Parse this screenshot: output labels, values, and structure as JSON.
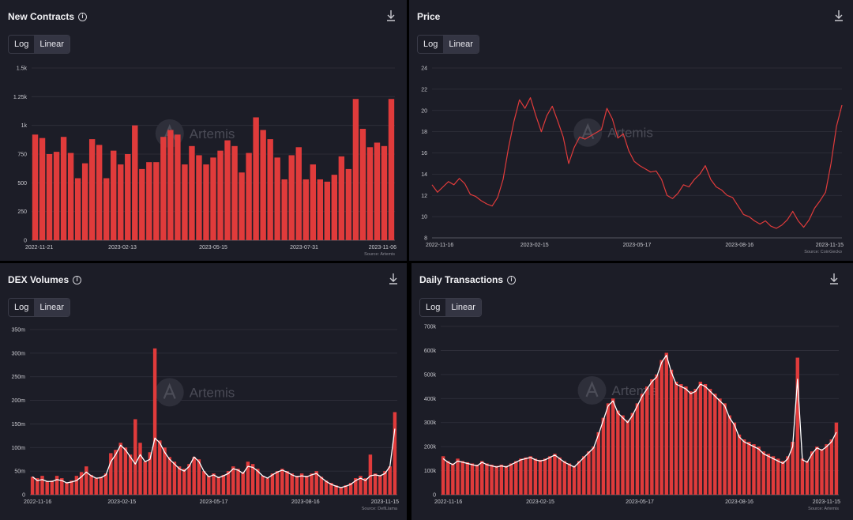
{
  "theme": {
    "panel_bg": "#1c1d27",
    "bar_color": "#e03b3b",
    "line_color": "#e03b3b",
    "avg_line_color": "#ffffff",
    "grid_color": "#30313c"
  },
  "toggle": {
    "log": "Log",
    "linear": "Linear",
    "selected": "Linear"
  },
  "watermark": "Artemis",
  "panels": {
    "contracts": {
      "title": "New Contracts",
      "source": "Source: Artemis"
    },
    "price": {
      "title": "Price",
      "source": "Source: CoinGecko"
    },
    "dex": {
      "title": "DEX Volumes",
      "source": "Source: DefiLlama"
    },
    "tx": {
      "title": "Daily Transactions",
      "source": "Source: Artemis"
    }
  },
  "chart_data": [
    {
      "id": "contracts",
      "type": "bar",
      "title": "New Contracts",
      "ylim": [
        0,
        1500
      ],
      "yticks": [
        "0",
        "250",
        "500",
        "750",
        "1k",
        "1.25k",
        "1.5k"
      ],
      "xticks": [
        "2022-11-21",
        "2023-02-13",
        "2023-05-15",
        "2023-07-31",
        "2023-11-06"
      ],
      "grid": true,
      "values": [
        920,
        890,
        750,
        770,
        900,
        760,
        540,
        670,
        880,
        830,
        540,
        780,
        660,
        750,
        1000,
        620,
        680,
        680,
        900,
        960,
        920,
        660,
        820,
        740,
        660,
        720,
        780,
        870,
        820,
        590,
        760,
        1070,
        960,
        880,
        720,
        530,
        740,
        810,
        530,
        660,
        530,
        510,
        570,
        730,
        620,
        1230,
        970,
        810,
        850,
        820,
        1230
      ]
    },
    {
      "id": "price",
      "type": "line",
      "title": "Price",
      "ylim": [
        8,
        24
      ],
      "yticks": [
        "8",
        "10",
        "12",
        "14",
        "16",
        "18",
        "20",
        "22",
        "24"
      ],
      "xticks": [
        "2022-11-16",
        "2023-02-15",
        "2023-05-17",
        "2023-08-16",
        "2023-11-15"
      ],
      "grid": true,
      "values": [
        13.0,
        12.3,
        12.8,
        13.3,
        13.0,
        13.6,
        13.1,
        12.1,
        11.9,
        11.5,
        11.2,
        11.0,
        11.8,
        13.5,
        16.5,
        19.0,
        21.0,
        20.2,
        21.2,
        19.5,
        18.0,
        19.5,
        20.4,
        19.0,
        17.5,
        15.0,
        16.5,
        17.5,
        17.3,
        17.6,
        17.9,
        18.2,
        20.2,
        19.2,
        17.4,
        17.8,
        16.2,
        15.2,
        14.8,
        14.5,
        14.2,
        14.3,
        13.5,
        12.0,
        11.7,
        12.2,
        13.0,
        12.8,
        13.5,
        14.0,
        14.8,
        13.5,
        12.8,
        12.5,
        12.0,
        11.8,
        11.0,
        10.2,
        10.0,
        9.6,
        9.3,
        9.6,
        9.1,
        8.9,
        9.2,
        9.7,
        10.5,
        9.6,
        9.0,
        9.7,
        10.8,
        11.5,
        12.3,
        15.0,
        18.5,
        20.5
      ]
    },
    {
      "id": "dex",
      "type": "bar",
      "title": "DEX Volumes",
      "ylim": [
        0,
        350
      ],
      "yticks": [
        "0",
        "50m",
        "100m",
        "150m",
        "200m",
        "250m",
        "300m",
        "350m"
      ],
      "xticks": [
        "2022-11-16",
        "2023-02-15",
        "2023-05-17",
        "2023-08-16",
        "2023-11-15"
      ],
      "grid": true,
      "values": [
        38,
        35,
        40,
        28,
        30,
        40,
        35,
        25,
        30,
        40,
        48,
        60,
        42,
        35,
        38,
        45,
        88,
        95,
        110,
        100,
        85,
        160,
        110,
        70,
        90,
        310,
        115,
        100,
        80,
        70,
        60,
        55,
        65,
        80,
        75,
        50,
        40,
        45,
        38,
        42,
        50,
        60,
        55,
        48,
        70,
        65,
        55,
        40,
        35,
        45,
        50,
        55,
        50,
        45,
        40,
        45,
        40,
        45,
        50,
        38,
        30,
        25,
        20,
        15,
        20,
        25,
        35,
        40,
        35,
        85,
        45,
        40,
        50,
        60,
        175
      ],
      "avg": [
        38,
        30,
        32,
        28,
        28,
        32,
        30,
        25,
        27,
        30,
        38,
        48,
        40,
        35,
        36,
        42,
        70,
        85,
        105,
        95,
        80,
        65,
        85,
        70,
        75,
        120,
        110,
        90,
        75,
        65,
        55,
        50,
        60,
        80,
        70,
        50,
        38,
        42,
        36,
        40,
        45,
        55,
        52,
        45,
        60,
        58,
        50,
        40,
        35,
        42,
        48,
        52,
        48,
        42,
        38,
        40,
        38,
        42,
        45,
        36,
        28,
        22,
        18,
        15,
        18,
        22,
        30,
        35,
        30,
        40,
        42,
        40,
        45,
        60,
        140
      ]
    },
    {
      "id": "tx",
      "type": "bar",
      "title": "Daily Transactions",
      "ylim": [
        0,
        700
      ],
      "yticks": [
        "0",
        "100k",
        "200k",
        "300k",
        "400k",
        "500k",
        "600k",
        "700k"
      ],
      "xticks": [
        "2022-11-16",
        "2023-02-15",
        "2023-05-17",
        "2023-08-16",
        "2023-11-15"
      ],
      "grid": true,
      "values": [
        160,
        140,
        130,
        150,
        140,
        135,
        130,
        125,
        140,
        130,
        125,
        120,
        125,
        120,
        130,
        140,
        150,
        155,
        160,
        150,
        145,
        150,
        160,
        170,
        155,
        140,
        130,
        120,
        140,
        160,
        180,
        200,
        260,
        320,
        380,
        400,
        350,
        330,
        310,
        340,
        380,
        420,
        450,
        480,
        500,
        560,
        590,
        520,
        470,
        460,
        450,
        430,
        440,
        470,
        460,
        440,
        420,
        400,
        380,
        330,
        300,
        250,
        230,
        220,
        210,
        200,
        180,
        170,
        160,
        150,
        140,
        160,
        220,
        570,
        150,
        140,
        180,
        200,
        190,
        210,
        230,
        300
      ],
      "avg": [
        150,
        135,
        125,
        140,
        135,
        130,
        125,
        120,
        135,
        125,
        120,
        115,
        120,
        115,
        125,
        135,
        145,
        150,
        155,
        145,
        140,
        145,
        155,
        165,
        150,
        135,
        125,
        115,
        135,
        155,
        175,
        195,
        250,
        310,
        370,
        390,
        340,
        320,
        300,
        330,
        370,
        410,
        440,
        470,
        490,
        550,
        580,
        510,
        460,
        450,
        440,
        420,
        430,
        460,
        450,
        430,
        410,
        390,
        370,
        320,
        290,
        240,
        220,
        210,
        200,
        190,
        170,
        160,
        150,
        140,
        130,
        150,
        200,
        480,
        145,
        135,
        170,
        195,
        185,
        200,
        220,
        260
      ]
    }
  ]
}
